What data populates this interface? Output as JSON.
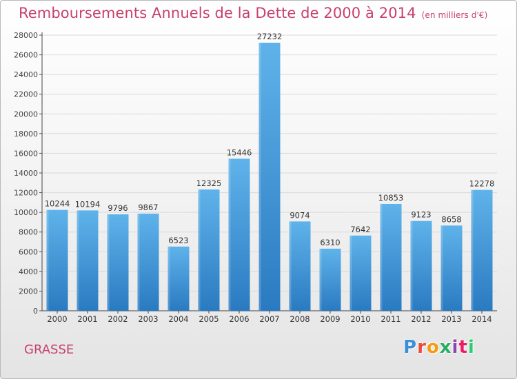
{
  "header": {
    "title": "Remboursements Annuels de la Dette de 2000 à 2014",
    "subtitle": "(en milliers d'€)"
  },
  "footer": {
    "city": "GRASSE",
    "logo_text": "Proxiti"
  },
  "colors": {
    "title": "#c8406a",
    "bar_top": "#5fb3ea",
    "bar_bottom": "#2a7ac1",
    "logo_letters": [
      "#3c8fd6",
      "#e74c3c",
      "#f39c12",
      "#27ae60",
      "#8e44ad",
      "#e91e63",
      "#2ecc71"
    ]
  },
  "chart_data": {
    "type": "bar",
    "categories": [
      "2000",
      "2001",
      "2002",
      "2003",
      "2004",
      "2005",
      "2006",
      "2007",
      "2008",
      "2009",
      "2010",
      "2011",
      "2012",
      "2013",
      "2014"
    ],
    "values": [
      10244,
      10194,
      9796,
      9867,
      6523,
      12325,
      15446,
      27232,
      9074,
      6310,
      7642,
      10853,
      9123,
      8658,
      12278
    ],
    "data_labels": [
      "10244",
      "10194",
      "9796",
      "9867",
      "6523",
      "12325",
      "15446",
      "27232",
      "9074",
      "6310",
      "7642",
      "10853",
      "9123",
      "8658",
      "12278"
    ],
    "title": "Remboursements Annuels de la Dette de 2000 à 2014",
    "ylim": [
      0,
      28000
    ],
    "yticks": [
      0,
      2000,
      4000,
      6000,
      8000,
      10000,
      12000,
      14000,
      16000,
      18000,
      20000,
      22000,
      24000,
      26000,
      28000
    ],
    "ytick_labels": [
      "0",
      "2000",
      "4000",
      "6000",
      "8000",
      "10000",
      "12000",
      "14000",
      "16000",
      "18000",
      "20000",
      "22000",
      "24000",
      "26000",
      "28000"
    ],
    "grid": true
  }
}
